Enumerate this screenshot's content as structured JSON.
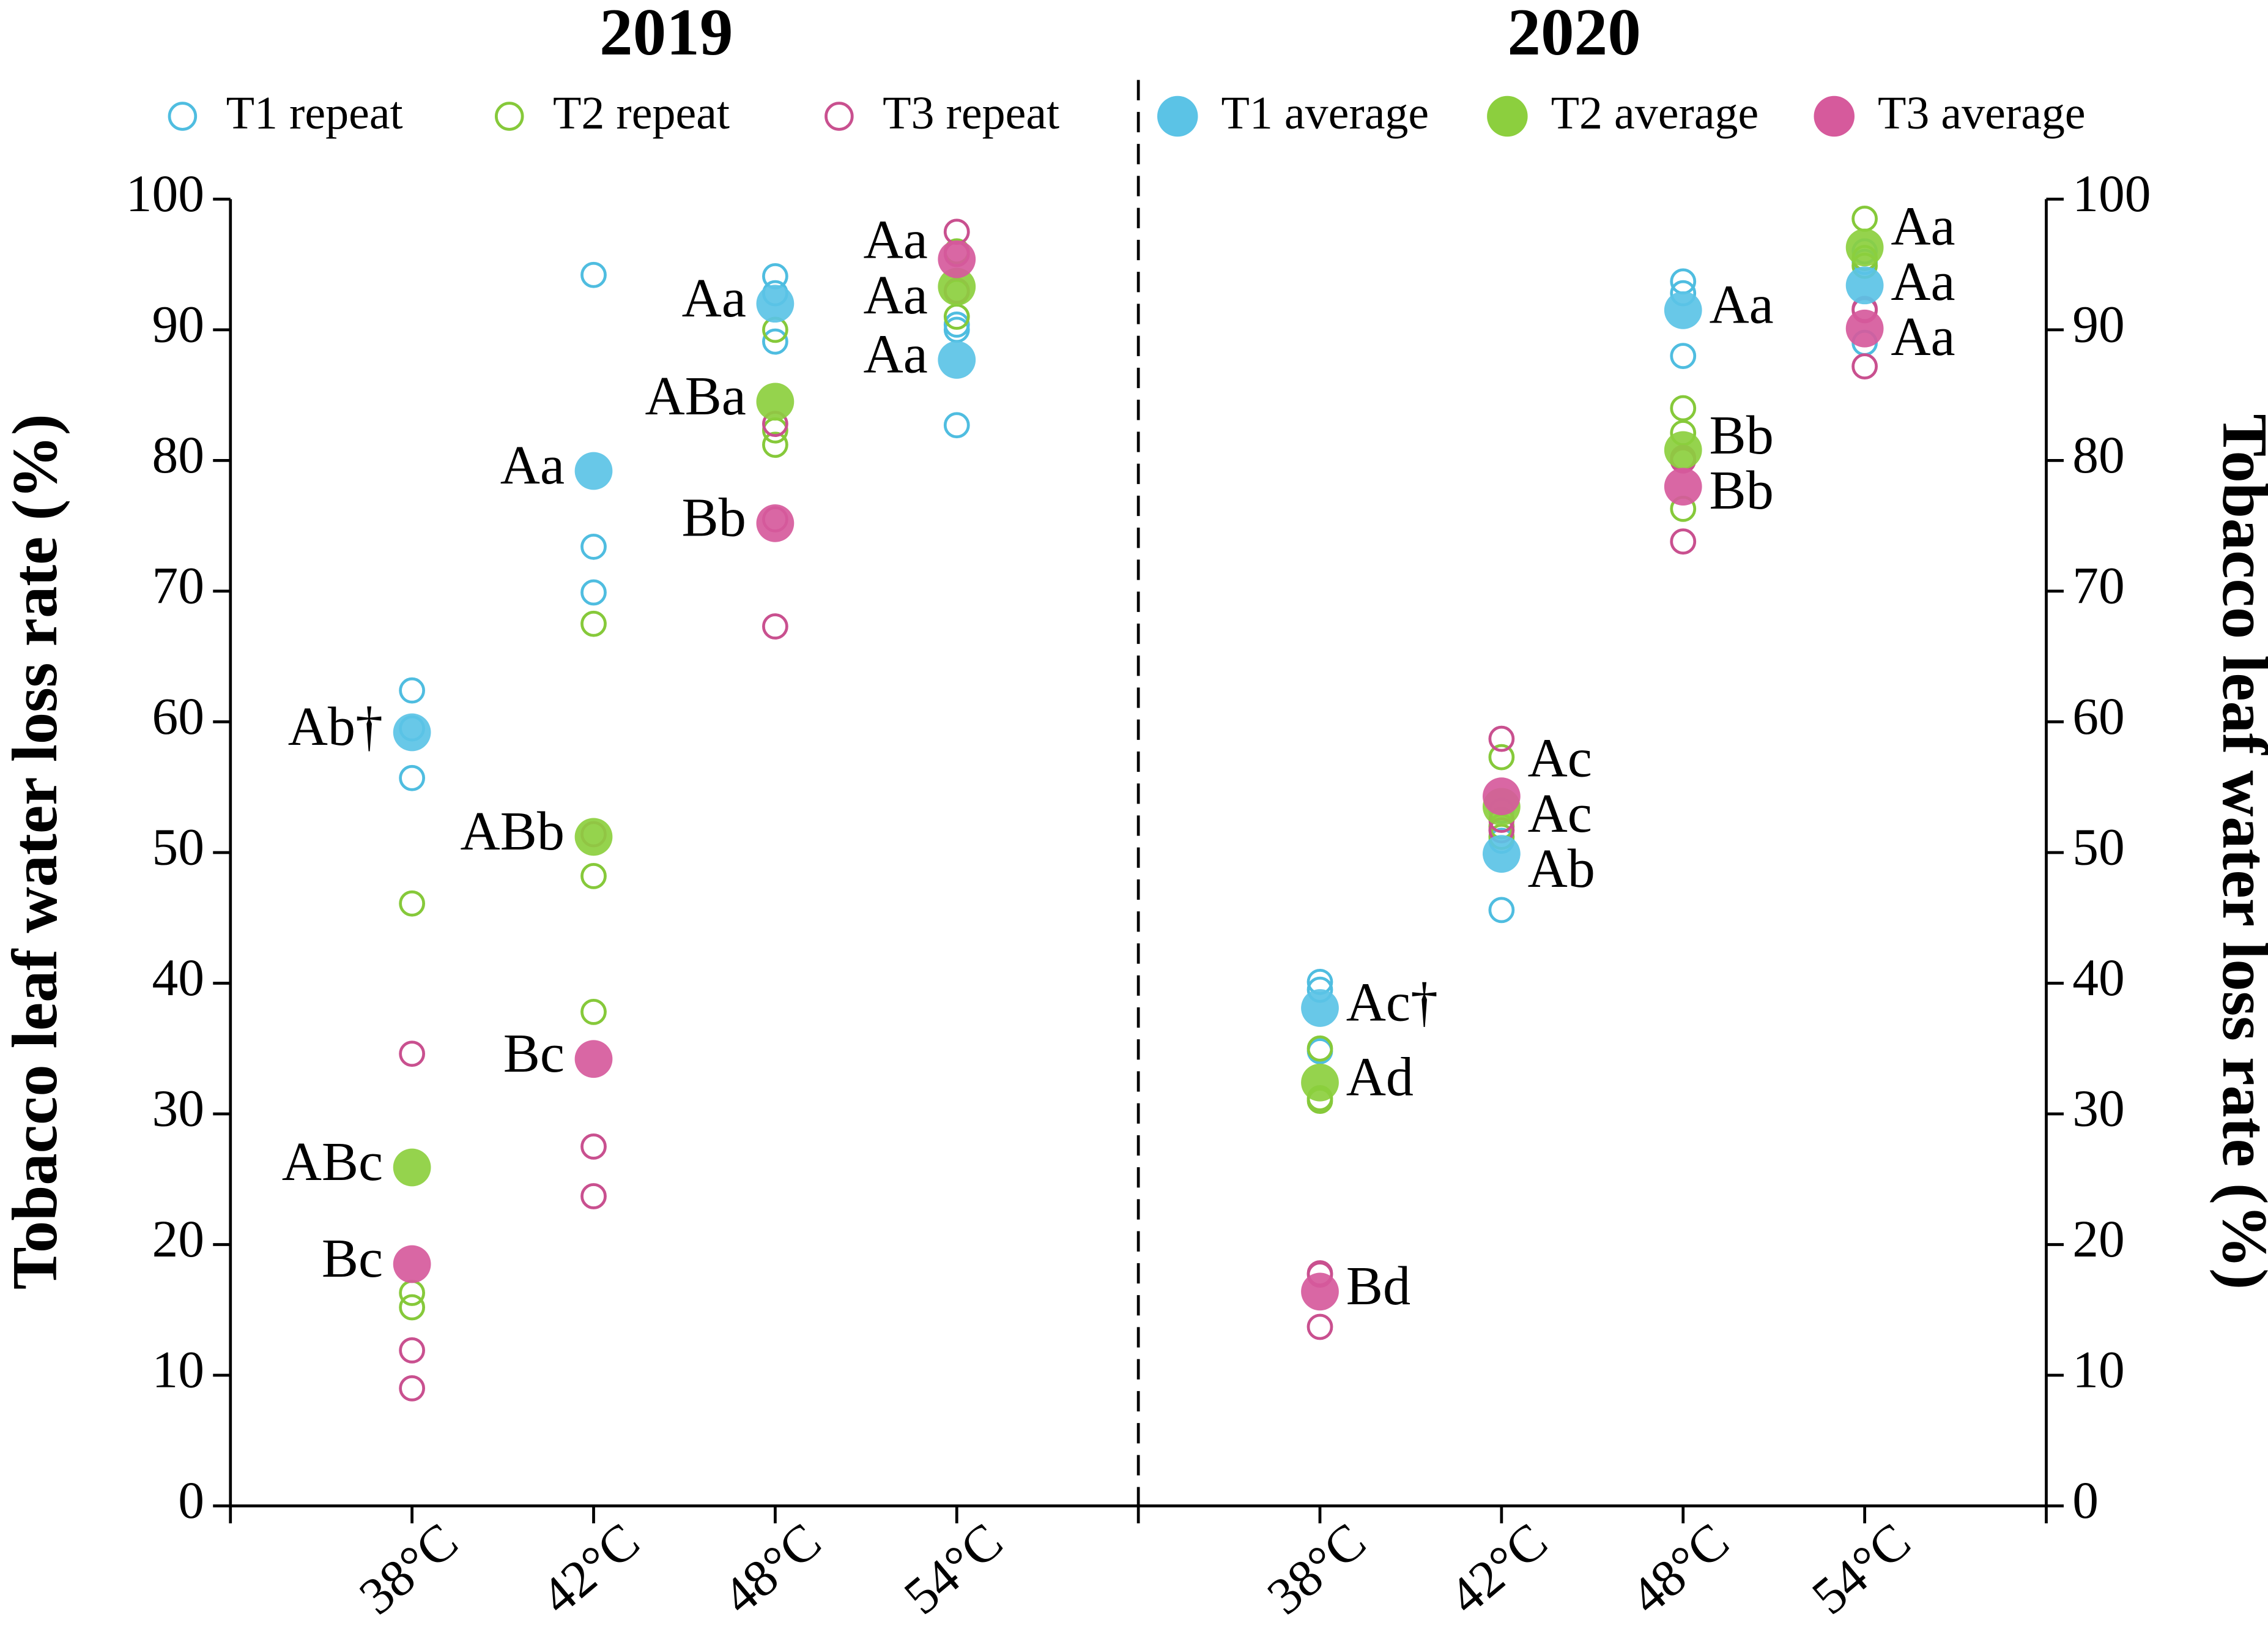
{
  "chart_data": {
    "type": "scatter",
    "ylabel": "Tobacco leaf water loss rate (%)",
    "y2label": "Tobacco leaf water loss rate (%)",
    "ylim": [
      0,
      100
    ],
    "yticks": [
      0,
      10,
      20,
      30,
      40,
      50,
      60,
      70,
      80,
      90,
      100
    ],
    "series": [
      {
        "name": "T1 repeat",
        "color": "#4fbde0",
        "kind": "repeat"
      },
      {
        "name": "T2 repeat",
        "color": "#86c93a",
        "kind": "repeat"
      },
      {
        "name": "T3 repeat",
        "color": "#c9508f",
        "kind": "repeat"
      },
      {
        "name": "T1 average",
        "color": "#5bc3e6",
        "kind": "average"
      },
      {
        "name": "T2 average",
        "color": "#8ccf3e",
        "kind": "average"
      },
      {
        "name": "T3 average",
        "color": "#d65a9c",
        "kind": "average"
      }
    ],
    "panels": [
      {
        "title": "2019",
        "categories": [
          "38°C",
          "42°C",
          "48°C",
          "54°C"
        ],
        "series": [
          {
            "values": [
              [
                62.4,
                59.5,
                55.7
              ],
              [
                94.2,
                73.4,
                69.9
              ],
              [
                94.1,
                92.8,
                89.1
              ],
              [
                82.7,
                90.4,
                90.0
              ]
            ]
          },
          {
            "values": [
              [
                46.1,
                16.3,
                15.2
              ],
              [
                67.5,
                48.2,
                37.8
              ],
              [
                90.0,
                82.3,
                81.2
              ],
              [
                91.0,
                92.9,
                96.0
              ]
            ]
          },
          {
            "values": [
              [
                34.6,
                11.9,
                9.0
              ],
              [
                51.4,
                27.5,
                23.7
              ],
              [
                82.8,
                75.5,
                67.3
              ],
              [
                97.5,
                95.8,
                93.0
              ]
            ]
          },
          {
            "values": [
              59.2,
              79.2,
              92.0,
              87.7
            ],
            "letters": [
              "Ab†",
              "Aa",
              "Aa",
              "Aa"
            ]
          },
          {
            "values": [
              25.9,
              51.2,
              84.5,
              93.3
            ],
            "letters": [
              "ABc",
              "ABb",
              "ABa",
              "Aa"
            ]
          },
          {
            "values": [
              18.5,
              34.2,
              75.2,
              95.4
            ],
            "letters": [
              "Bc",
              "Bc",
              "Bb",
              "Aa"
            ]
          }
        ]
      },
      {
        "title": "2020",
        "categories": [
          "38°C",
          "42°C",
          "48°C",
          "54°C"
        ],
        "series": [
          {
            "values": [
              [
                40.1,
                39.5,
                34.8
              ],
              [
                53.2,
                50.9,
                45.6
              ],
              [
                93.7,
                92.8,
                88.0
              ],
              [
                95.2,
                96.0,
                89.0
              ]
            ]
          },
          {
            "values": [
              [
                35.0,
                31.2,
                31.0
              ],
              [
                57.3,
                52.0,
                51.2
              ],
              [
                84.0,
                82.1,
                76.3
              ],
              [
                98.5,
                95.5,
                94.9
              ]
            ]
          },
          {
            "values": [
              [
                17.8,
                17.7,
                13.7
              ],
              [
                58.7,
                52.5,
                51.7
              ],
              [
                80.2,
                80.0,
                73.8
              ],
              [
                91.6,
                91.5,
                87.2
              ]
            ]
          },
          {
            "values": [
              38.1,
              49.9,
              91.5,
              93.4
            ],
            "letters": [
              "Ac†",
              "Ab",
              "Aa",
              "Aa"
            ]
          },
          {
            "values": [
              32.4,
              53.5,
              80.8,
              96.3
            ],
            "letters": [
              "Ad",
              "Ac",
              "Bb",
              "Aa"
            ]
          },
          {
            "values": [
              16.4,
              54.3,
              78.0,
              90.1
            ],
            "letters": [
              "Bd",
              "Ac",
              "Bb",
              "Aa"
            ]
          }
        ]
      }
    ]
  }
}
